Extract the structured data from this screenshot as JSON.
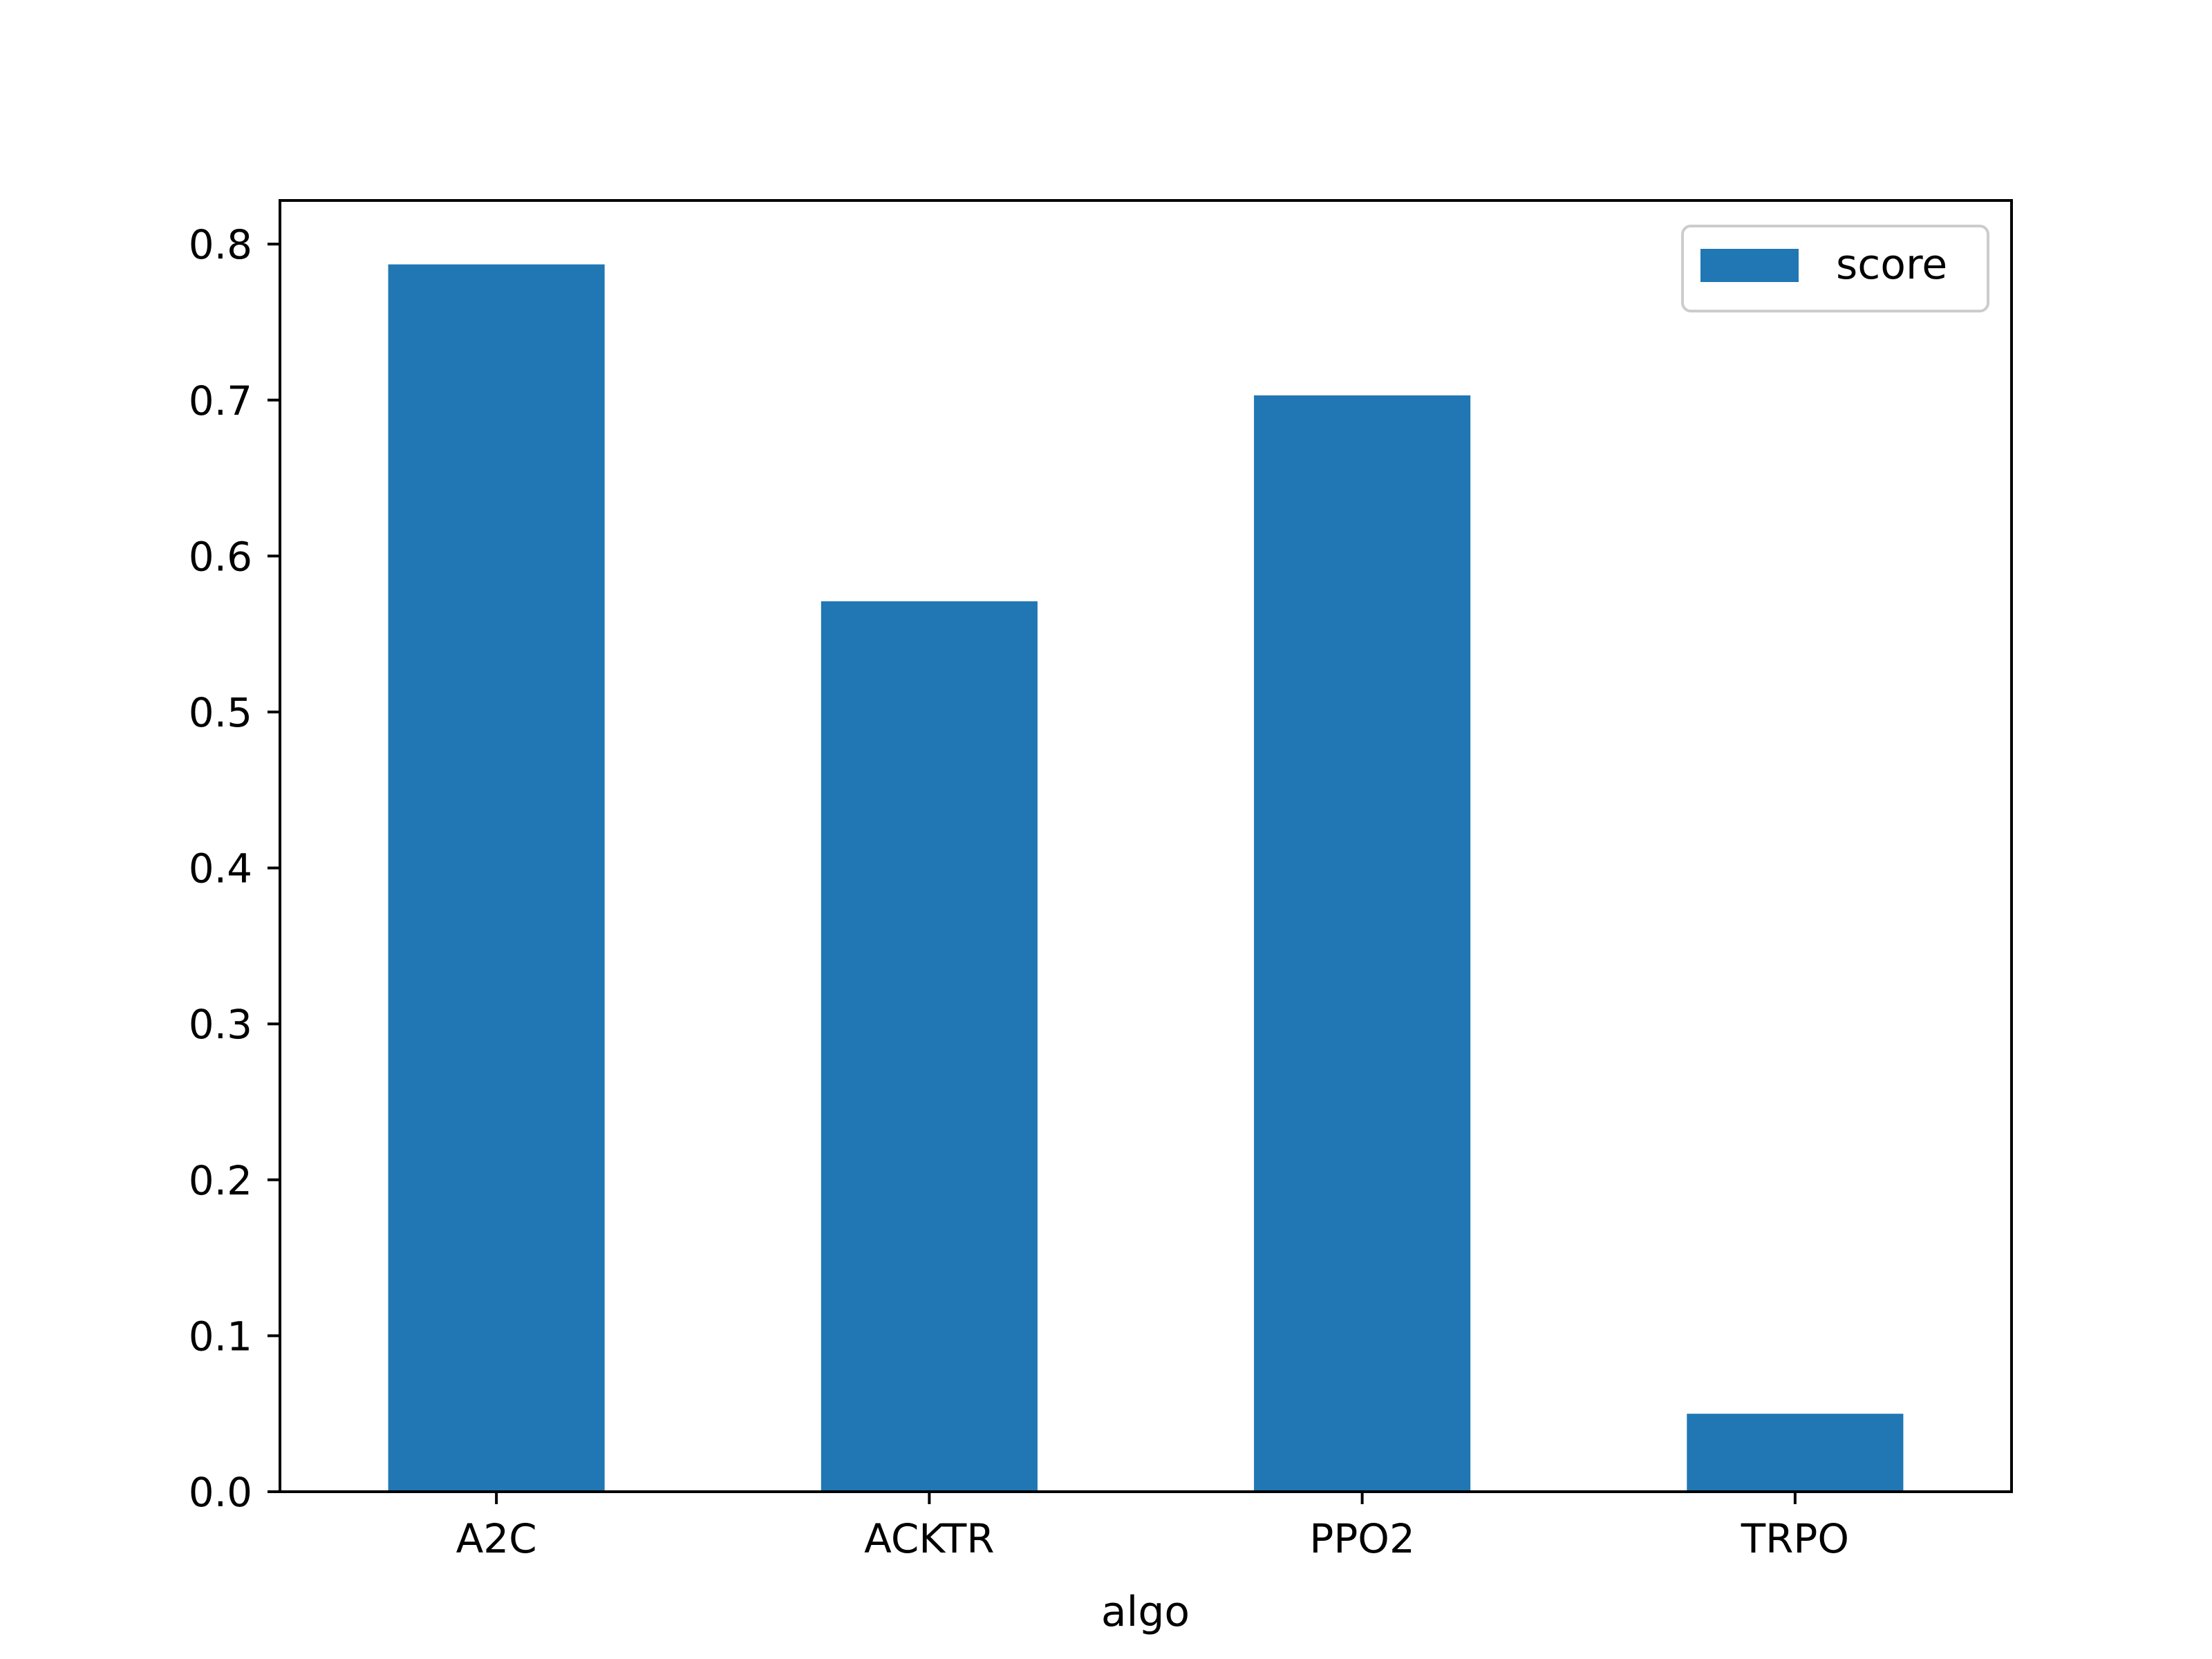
{
  "chart_data": {
    "type": "bar",
    "title": "",
    "xlabel": "algo",
    "ylabel": "",
    "categories": [
      "A2C",
      "ACKTR",
      "PPO2",
      "TRPO"
    ],
    "series": [
      {
        "name": "score",
        "color": "#2077b4",
        "values": [
          0.787,
          0.571,
          0.703,
          0.05
        ]
      }
    ],
    "ylim": [
      0,
      0.828
    ],
    "yticks": [
      0.0,
      0.1,
      0.2,
      0.3,
      0.4,
      0.5,
      0.6,
      0.7,
      0.8
    ],
    "ytick_labels": [
      "0.0",
      "0.1",
      "0.2",
      "0.3",
      "0.4",
      "0.5",
      "0.6",
      "0.7",
      "0.8"
    ],
    "grid": false,
    "legend": {
      "position": "top-right",
      "entries": [
        "score"
      ]
    }
  }
}
